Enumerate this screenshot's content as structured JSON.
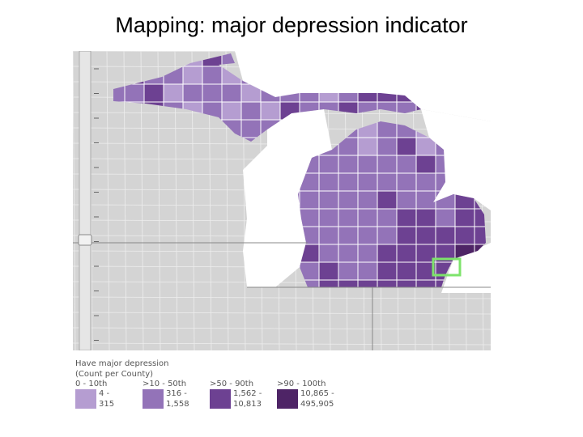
{
  "title": "Mapping:  major depression indicator",
  "legend": {
    "heading": "Have major depression",
    "subheading": "(Count per County)",
    "classes": [
      {
        "label": "0 - 10th",
        "from": "4 -",
        "to": "315",
        "color": "#b59dd1"
      },
      {
        "label": ">10 - 50th",
        "from": "316 -",
        "to": "1,558",
        "color": "#9373b8"
      },
      {
        "label": ">50 - 90th",
        "from": "1,562 -",
        "to": "10,813",
        "color": "#6d4192"
      },
      {
        "label": ">90 - 100th",
        "from": "10,865 -",
        "to": "495,905",
        "color": "#4e2466"
      }
    ]
  }
}
